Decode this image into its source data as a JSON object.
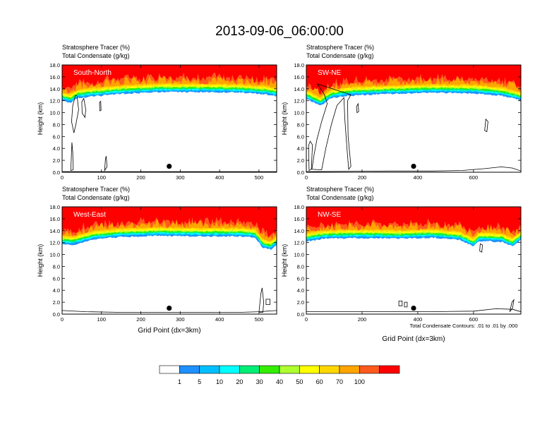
{
  "figure": {
    "title": "2013-09-06_06:00:00",
    "contour_note": "Total Condensate Contours: .01 to .01 by .000",
    "shared_xlabel": "Grid Point (dx=3km)"
  },
  "colors": {
    "bins": [
      "#ffffff",
      "#1e90ff",
      "#00bfff",
      "#00ffff",
      "#00ee76",
      "#33ee00",
      "#adff2f",
      "#ffff00",
      "#ffd700",
      "#ffa500",
      "#ff5a1e",
      "#ff0000"
    ],
    "labels": [
      "1",
      "5",
      "10",
      "20",
      "30",
      "40",
      "50",
      "60",
      "70",
      "100"
    ]
  },
  "chart_data": [
    {
      "type": "heatmap",
      "panel": "South-North",
      "title_line1": "Stratosphere Tracer   (%)",
      "title_line2": "Total Condensate   (g/kg)",
      "xlabel": "",
      "ylabel": "Height (km)",
      "xlim": [
        0,
        545
      ],
      "ylim": [
        0,
        18
      ],
      "xticks": [
        0,
        100,
        200,
        300,
        400,
        500
      ],
      "yticks": [
        "0.0",
        "2.0",
        "4.0",
        "6.0",
        "8.0",
        "10.0",
        "12.0",
        "14.0",
        "16.0",
        "18.0"
      ],
      "marker_x": 272,
      "tropopause_km": [
        [
          0,
          12.2
        ],
        [
          10,
          12.0
        ],
        [
          20,
          11.8
        ],
        [
          40,
          12.6
        ],
        [
          80,
          12.9
        ],
        [
          150,
          13.3
        ],
        [
          250,
          13.6
        ],
        [
          350,
          13.6
        ],
        [
          450,
          13.5
        ],
        [
          520,
          13.2
        ],
        [
          545,
          12.9
        ]
      ],
      "blob_contours": [
        [
          [
            38,
            12.8
          ],
          [
            42,
            10.5
          ],
          [
            35,
            8.0
          ],
          [
            30,
            6.6
          ],
          [
            24,
            8.5
          ],
          [
            27,
            11.2
          ],
          [
            34,
            12.9
          ]
        ],
        [
          [
            55,
            12.4
          ],
          [
            60,
            10.5
          ],
          [
            58,
            9.2
          ],
          [
            51,
            9.9
          ],
          [
            50,
            11.8
          ]
        ],
        [
          [
            22,
            0.3
          ],
          [
            24,
            3.5
          ],
          [
            25,
            5.0
          ],
          [
            27,
            3.3
          ],
          [
            28,
            0.4
          ]
        ],
        [
          [
            108,
            0.3
          ],
          [
            110,
            2.2
          ],
          [
            112,
            2.7
          ],
          [
            114,
            0.9
          ]
        ],
        [
          [
            95,
            11.7
          ],
          [
            98,
            11.9
          ],
          [
            99,
            10.4
          ],
          [
            96,
            10.3
          ]
        ]
      ],
      "ground_line": [
        [
          0,
          0.1
        ],
        [
          545,
          0.1
        ]
      ]
    },
    {
      "type": "heatmap",
      "panel": "SW-NE",
      "title_line1": "Stratosphere Tracer   (%)",
      "title_line2": "Total Condensate   (g/kg)",
      "xlabel": "",
      "ylabel": "Height (km)",
      "xlim": [
        0,
        770
      ],
      "ylim": [
        0,
        18
      ],
      "xticks": [
        0,
        200,
        400,
        600
      ],
      "yticks": [
        "0.0",
        "2.0",
        "4.0",
        "6.0",
        "8.0",
        "10.0",
        "12.0",
        "14.0",
        "16.0",
        "18.0"
      ],
      "marker_x": 385,
      "tropopause_km": [
        [
          0,
          12.5
        ],
        [
          20,
          12.0
        ],
        [
          50,
          11.3
        ],
        [
          90,
          12.6
        ],
        [
          150,
          13.0
        ],
        [
          300,
          13.3
        ],
        [
          450,
          13.5
        ],
        [
          600,
          13.4
        ],
        [
          700,
          13.0
        ],
        [
          770,
          12.2
        ]
      ],
      "blob_contours": [
        [
          [
            40,
            14.8
          ],
          [
            65,
            13.0
          ],
          [
            75,
            11.5
          ],
          [
            55,
            8.5
          ],
          [
            38,
            5.5
          ],
          [
            28,
            3.0
          ],
          [
            20,
            0.5
          ],
          [
            55,
            0.4
          ],
          [
            70,
            4.0
          ],
          [
            90,
            8.0
          ],
          [
            110,
            11.2
          ],
          [
            135,
            12.5
          ],
          [
            138,
            9.0
          ],
          [
            146,
            4.0
          ],
          [
            152,
            0.5
          ],
          [
            160,
            1.0
          ],
          [
            150,
            6.0
          ],
          [
            148,
            12.0
          ],
          [
            160,
            13.0
          ]
        ],
        [
          [
            10,
            0.3
          ],
          [
            18,
            0.5
          ],
          [
            22,
            4.6
          ],
          [
            14,
            5.2
          ],
          [
            8,
            4.5
          ]
        ],
        [
          [
            640,
            7.0
          ],
          [
            648,
            6.8
          ],
          [
            652,
            8.5
          ],
          [
            644,
            8.9
          ]
        ],
        [
          [
            180,
            11.0
          ],
          [
            186,
            11.5
          ],
          [
            188,
            10.2
          ],
          [
            182,
            10.0
          ]
        ]
      ],
      "ground_line": [
        [
          0,
          0.1
        ],
        [
          300,
          0.2
        ],
        [
          450,
          0.2
        ],
        [
          560,
          0.3
        ],
        [
          640,
          0.6
        ],
        [
          700,
          0.9
        ],
        [
          740,
          0.7
        ],
        [
          770,
          0.2
        ]
      ]
    },
    {
      "type": "heatmap",
      "panel": "West-East",
      "title_line1": "Stratosphere Tracer   (%)",
      "title_line2": "Total Condensate   (g/kg)",
      "xlabel": "Grid Point (dx=3km)",
      "ylabel": "Height (km)",
      "xlim": [
        0,
        545
      ],
      "ylim": [
        0,
        18
      ],
      "xticks": [
        0,
        100,
        200,
        300,
        400,
        500
      ],
      "yticks": [
        "0.0",
        "2.0",
        "4.0",
        "6.0",
        "8.0",
        "10.0",
        "12.0",
        "14.0",
        "16.0",
        "18.0"
      ],
      "marker_x": 272,
      "tropopause_km": [
        [
          0,
          11.9
        ],
        [
          30,
          11.8
        ],
        [
          80,
          12.7
        ],
        [
          150,
          13.1
        ],
        [
          250,
          13.3
        ],
        [
          350,
          13.2
        ],
        [
          450,
          13.2
        ],
        [
          490,
          13.0
        ],
        [
          510,
          11.3
        ],
        [
          530,
          11.0
        ],
        [
          545,
          11.8
        ]
      ],
      "blob_contours": [
        [
          [
            500,
            0.3
          ],
          [
            505,
            3.5
          ],
          [
            508,
            4.4
          ],
          [
            512,
            2.0
          ],
          [
            510,
            0.3
          ]
        ],
        [
          [
            518,
            1.6
          ],
          [
            528,
            1.6
          ],
          [
            528,
            2.5
          ],
          [
            518,
            2.5
          ]
        ]
      ],
      "ground_line": [
        [
          0,
          0.6
        ],
        [
          60,
          0.4
        ],
        [
          150,
          0.3
        ],
        [
          300,
          0.3
        ],
        [
          450,
          0.3
        ],
        [
          500,
          0.4
        ],
        [
          545,
          0.6
        ]
      ]
    },
    {
      "type": "heatmap",
      "panel": "NW-SE",
      "title_line1": "Stratosphere Tracer   (%)",
      "title_line2": "Total Condensate   (g/kg)",
      "xlabel": "Grid Point (dx=3km)",
      "ylabel": "Height (km)",
      "xlim": [
        0,
        770
      ],
      "ylim": [
        0,
        18
      ],
      "xticks": [
        0,
        200,
        400,
        600
      ],
      "yticks": [
        "0.0",
        "2.0",
        "4.0",
        "6.0",
        "8.0",
        "10.0",
        "12.0",
        "14.0",
        "16.0",
        "18.0"
      ],
      "marker_x": 385,
      "tropopause_km": [
        [
          0,
          12.3
        ],
        [
          60,
          12.8
        ],
        [
          150,
          12.9
        ],
        [
          250,
          12.9
        ],
        [
          350,
          12.8
        ],
        [
          450,
          13.0
        ],
        [
          550,
          12.6
        ],
        [
          600,
          11.5
        ],
        [
          620,
          12.4
        ],
        [
          700,
          12.3
        ],
        [
          740,
          11.5
        ],
        [
          770,
          12.6
        ]
      ],
      "blob_contours": [
        [
          [
            332,
            1.4
          ],
          [
            344,
            1.4
          ],
          [
            344,
            2.2
          ],
          [
            332,
            2.2
          ]
        ],
        [
          [
            352,
            1.2
          ],
          [
            362,
            1.2
          ],
          [
            362,
            2.0
          ],
          [
            352,
            2.0
          ]
        ],
        [
          [
            622,
            10.6
          ],
          [
            630,
            10.4
          ],
          [
            632,
            11.6
          ],
          [
            624,
            11.8
          ]
        ],
        [
          [
            730,
            0.4
          ],
          [
            740,
            1.0
          ],
          [
            745,
            2.4
          ],
          [
            738,
            2.0
          ]
        ]
      ],
      "ground_line": [
        [
          0,
          0.4
        ],
        [
          150,
          0.4
        ],
        [
          300,
          0.4
        ],
        [
          450,
          0.4
        ],
        [
          600,
          0.5
        ],
        [
          680,
          0.9
        ],
        [
          740,
          0.8
        ],
        [
          770,
          0.4
        ]
      ]
    }
  ]
}
